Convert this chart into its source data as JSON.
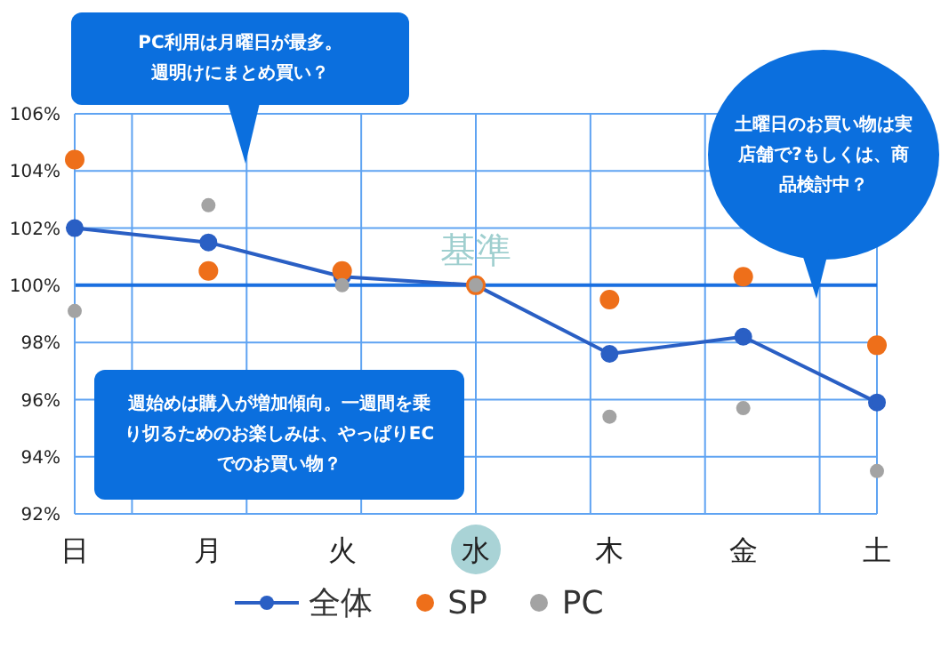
{
  "chart_data": {
    "type": "line",
    "categories": [
      "日",
      "月",
      "火",
      "水",
      "木",
      "金",
      "土"
    ],
    "series": [
      {
        "name": "全体",
        "color": "#2a5fc4",
        "values": [
          102.0,
          101.5,
          100.3,
          100.0,
          97.6,
          98.2,
          95.9
        ]
      },
      {
        "name": "SP",
        "type": "scatter",
        "color": "#ee6f1a",
        "values": [
          104.4,
          100.5,
          100.5,
          100.0,
          99.5,
          100.3,
          97.9
        ]
      },
      {
        "name": "PC",
        "type": "scatter",
        "color": "#a3a3a3",
        "values": [
          99.1,
          102.8,
          100.0,
          100.0,
          95.4,
          95.7,
          93.5
        ]
      }
    ],
    "ylim": [
      92,
      106
    ],
    "yticks": [
      {
        "value": 92,
        "label": "92%"
      },
      {
        "value": 94,
        "label": "94%"
      },
      {
        "value": 96,
        "label": "96%"
      },
      {
        "value": 98,
        "label": "98%"
      },
      {
        "value": 100,
        "label": "100%"
      },
      {
        "value": 102,
        "label": "102%"
      },
      {
        "value": 104,
        "label": "104%"
      },
      {
        "value": 106,
        "label": "106%"
      }
    ],
    "ref_lines": [
      {
        "axis": "y",
        "value": 100,
        "label": "基準",
        "color": "#1a6fe0"
      }
    ],
    "grid": true,
    "legend": "bottom",
    "marker": "circle",
    "line_style": "solid",
    "annotations": [
      "PC利用は月曜日が最多。週明けにまとめ買い？",
      "週始めは購入が増加傾向。一週間を乗り切るためのお楽しみは、やっぱりECでのお買い物？",
      "土曜日のお買い物は実店舗で?もしくは、商品検討中？"
    ]
  }
}
